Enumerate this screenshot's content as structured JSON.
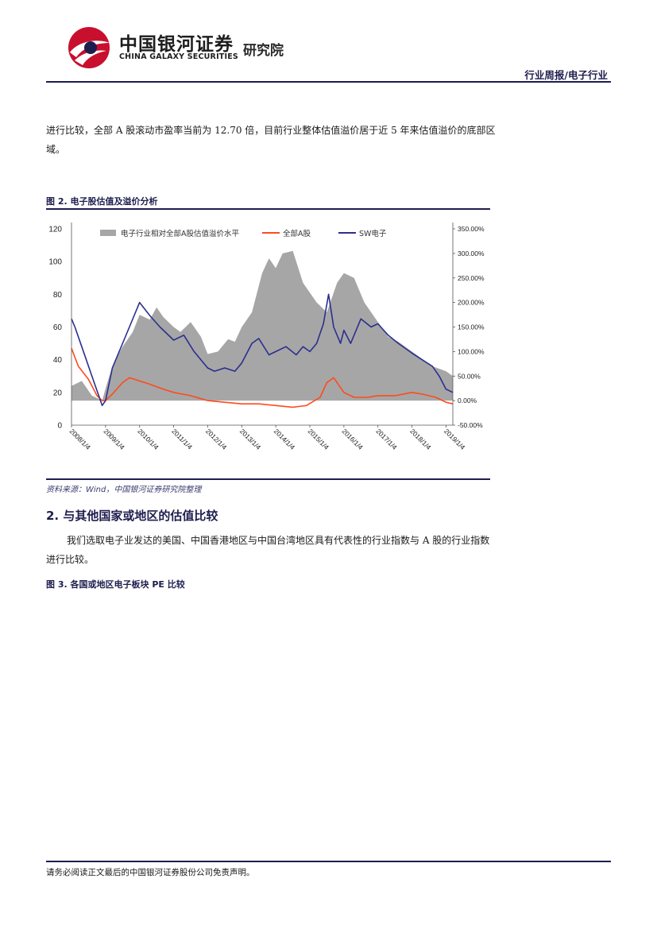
{
  "header": {
    "brand_cn": "中国银河证券",
    "brand_en": "CHINA GALAXY SECURITIES",
    "brand_sub": "研究院",
    "report_type": "行业周报/电子行业",
    "brand_color": "#c8102e",
    "accent_color": "#1d1d4e"
  },
  "body": {
    "para1": "进行比较，全部 A 股滚动市盈率当前为 12.70 倍，目前行业整体估值溢价居于近 5 年来估值溢价的底部区域。",
    "fig2_title": "图 2. 电子股估值及溢价分析",
    "source": "资料来源：Wind，中国银河证券研究院整理",
    "section2_title": "2. 与其他国家或地区的估值比较",
    "para2": "我们选取电子业发达的美国、中国香港地区与中国台湾地区具有代表性的行业指数与 A 股的行业指数进行比较。",
    "fig3_title": "图 3. 各国或地区电子板块 PE 比较"
  },
  "chart_data": {
    "type": "line",
    "legend_position": "top",
    "grid": false,
    "x_categories": [
      "2008/1/4",
      "2009/1/4",
      "2010/1/4",
      "2011/1/4",
      "2012/1/4",
      "2013/1/4",
      "2014/1/4",
      "2015/1/4",
      "2016/1/4",
      "2017/1/4",
      "2018/1/4",
      "2019/1/4"
    ],
    "y_left": {
      "min": 0,
      "max": 120,
      "ticks": [
        "0",
        "20",
        "40",
        "60",
        "80",
        "100",
        "120"
      ]
    },
    "y_right": {
      "min": -50,
      "max": 350,
      "ticks": [
        "-50.00%",
        "0.00%",
        "50.00%",
        "100.00%",
        "150.00%",
        "200.00%",
        "250.00%",
        "300.00%",
        "350.00%"
      ]
    },
    "series": [
      {
        "name": "电子行业相对全部A股估值溢价水平",
        "axis": "right",
        "kind": "area",
        "color": "#a6a6a6",
        "x": [
          0,
          0.3,
          0.6,
          0.9,
          1.0,
          1.2,
          1.5,
          1.8,
          2.0,
          2.3,
          2.5,
          2.7,
          3.0,
          3.2,
          3.5,
          3.8,
          4.0,
          4.3,
          4.6,
          4.8,
          5.0,
          5.3,
          5.6,
          5.8,
          6.0,
          6.2,
          6.5,
          6.8,
          7.0,
          7.2,
          7.5,
          7.8,
          8.0,
          8.3,
          8.6,
          9.0,
          9.3,
          9.6,
          10.0,
          10.3,
          10.6,
          11.0,
          11.2
        ],
        "values": [
          30,
          40,
          10,
          0,
          25,
          70,
          110,
          140,
          175,
          165,
          190,
          170,
          150,
          140,
          160,
          130,
          95,
          100,
          125,
          120,
          150,
          180,
          260,
          290,
          270,
          300,
          305,
          240,
          220,
          200,
          180,
          240,
          260,
          250,
          200,
          160,
          130,
          120,
          100,
          85,
          70,
          60,
          50
        ]
      },
      {
        "name": "全部A股",
        "axis": "left",
        "kind": "line",
        "color": "#ff4a1c",
        "x": [
          0,
          0.2,
          0.5,
          0.75,
          0.9,
          1.0,
          1.2,
          1.5,
          1.7,
          2.0,
          2.3,
          2.7,
          3.0,
          3.5,
          4.0,
          4.5,
          5.0,
          5.5,
          6.0,
          6.5,
          6.9,
          7.3,
          7.5,
          7.7,
          8.0,
          8.3,
          8.7,
          9.0,
          9.5,
          10.0,
          10.3,
          10.7,
          11.0,
          11.2
        ],
        "values": [
          47,
          36,
          28,
          18,
          15,
          15,
          19,
          26,
          29,
          27,
          25,
          22,
          20,
          18,
          15,
          14,
          13,
          13,
          12,
          11,
          12,
          17,
          26,
          29,
          20,
          17,
          17,
          18,
          18,
          20,
          19,
          17,
          14,
          13
        ]
      },
      {
        "name": "SW电子",
        "axis": "left",
        "kind": "line",
        "color": "#2b2f8f",
        "x": [
          0,
          0.1,
          0.3,
          0.6,
          0.8,
          0.9,
          1.0,
          1.2,
          1.4,
          1.7,
          2.0,
          2.3,
          2.6,
          3.0,
          3.3,
          3.6,
          4.0,
          4.2,
          4.5,
          4.8,
          5.0,
          5.3,
          5.5,
          5.8,
          6.0,
          6.3,
          6.6,
          6.8,
          7.0,
          7.2,
          7.4,
          7.55,
          7.7,
          7.9,
          8.0,
          8.2,
          8.5,
          8.8,
          9.0,
          9.3,
          9.6,
          10.0,
          10.3,
          10.6,
          10.8,
          11.0,
          11.2
        ],
        "values": [
          65,
          60,
          48,
          30,
          18,
          12,
          15,
          35,
          45,
          60,
          75,
          67,
          60,
          52,
          55,
          45,
          35,
          33,
          35,
          33,
          38,
          50,
          53,
          43,
          45,
          48,
          43,
          48,
          45,
          50,
          62,
          80,
          60,
          50,
          58,
          50,
          65,
          60,
          62,
          55,
          50,
          44,
          40,
          36,
          30,
          22,
          20
        ]
      }
    ]
  }
}
